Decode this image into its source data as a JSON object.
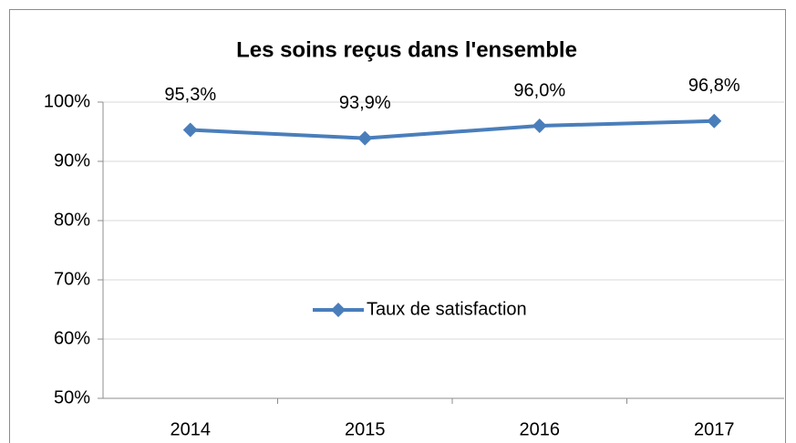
{
  "chart_data": {
    "type": "line",
    "title": "Les soins reçus dans l'ensemble",
    "categories": [
      "2014",
      "2015",
      "2016",
      "2017"
    ],
    "series": [
      {
        "name": "Taux de satisfaction",
        "color": "#4a7ebb",
        "values": [
          95.3,
          93.9,
          96.0,
          96.8
        ],
        "value_labels": [
          "95,3%",
          "93,9%",
          "96,0%",
          "96,8%"
        ]
      }
    ],
    "ylim": [
      50,
      100
    ],
    "yticks": [
      {
        "value": 50,
        "label": "50%"
      },
      {
        "value": 60,
        "label": "60%"
      },
      {
        "value": 70,
        "label": "70%"
      },
      {
        "value": 80,
        "label": "80%"
      },
      {
        "value": 90,
        "label": "90%"
      },
      {
        "value": 100,
        "label": "100%"
      }
    ],
    "grid": true,
    "legend": "center"
  }
}
